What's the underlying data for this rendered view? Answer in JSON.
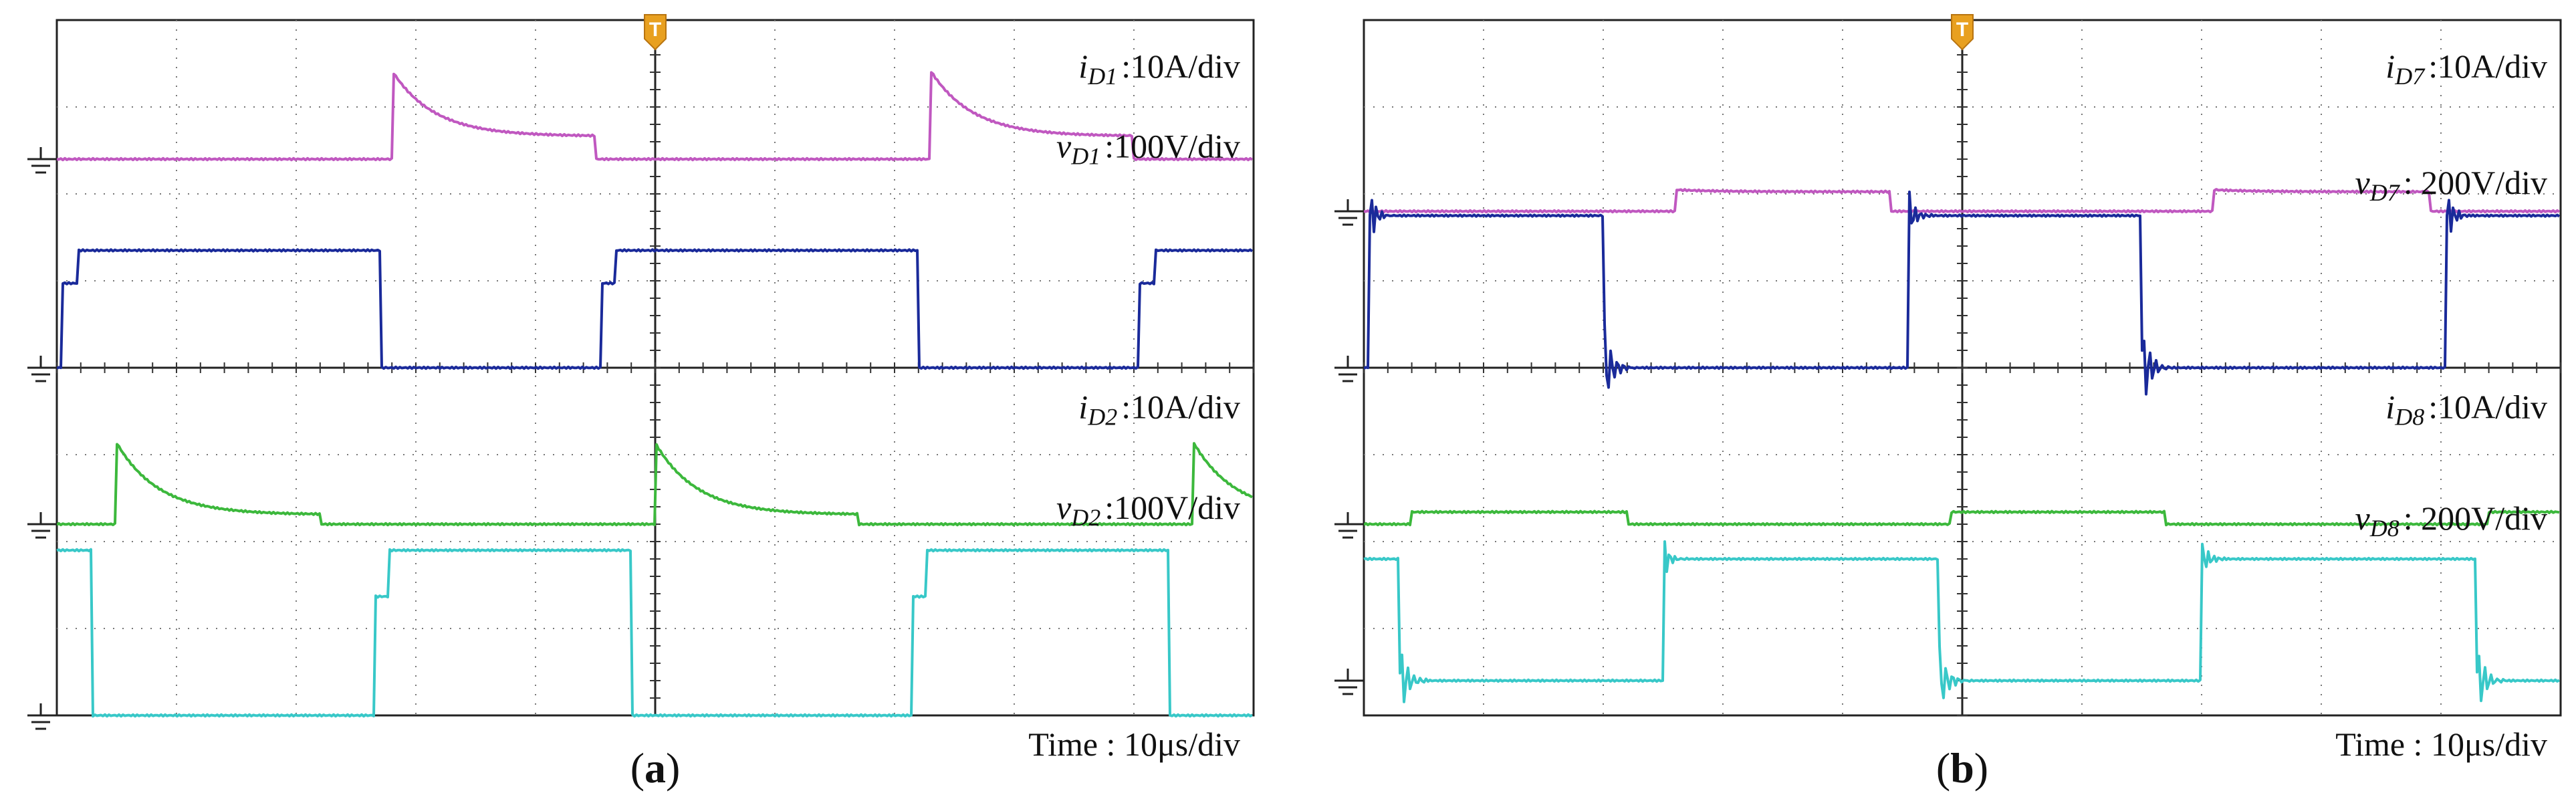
{
  "chart_data": [
    {
      "type": "line",
      "panel": "a",
      "caption": "(a)",
      "x_scale": "Time : 10μs/div",
      "grid": "10 x 8 divisions, dotted",
      "trigger_marker": "T",
      "traces": [
        {
          "name": "i_D1",
          "symbol": "i",
          "subscript": "D1",
          "scale": ":10A/div",
          "color": "#c058c0",
          "kind": "current",
          "period": 4.5,
          "rise": 2.8,
          "fall": 4.5,
          "peak": 0.85,
          "plateau": 0.22,
          "baseline_div": 1.6,
          "amp_div": 1.2,
          "label_row": 0.66
        },
        {
          "name": "v_D1",
          "symbol": "v",
          "subscript": "D1",
          "scale": ":100V/div",
          "color": "#1a2a9a",
          "kind": "voltage",
          "period": 4.5,
          "rise": 0.05,
          "fall": 2.7,
          "steps": true,
          "baseline_div": 4.0,
          "amp_div": 1.35,
          "label_row": 1.58
        },
        {
          "name": "i_D2",
          "symbol": "i",
          "subscript": "D2",
          "scale": ":10A/div",
          "color": "#3cb83c",
          "kind": "current",
          "period": 4.5,
          "rise": 0.5,
          "fall": 2.2,
          "peak": 0.85,
          "plateau": 0.1,
          "baseline_div": 5.8,
          "amp_div": 1.1,
          "label_row": 4.58
        },
        {
          "name": "v_D2",
          "symbol": "v",
          "subscript": "D2",
          "scale": ":100V/div",
          "color": "#38c8c8",
          "kind": "voltage",
          "period": 4.5,
          "rise": 2.65,
          "fall": 0.3,
          "steps": true,
          "baseline_div": 8.0,
          "amp_div": 1.9,
          "label_row": 5.74
        }
      ]
    },
    {
      "type": "line",
      "panel": "b",
      "caption": "(b)",
      "x_scale": "Time : 10μs/div",
      "grid": "10 x 8 divisions, dotted",
      "trigger_marker": "T",
      "traces": [
        {
          "name": "i_D7",
          "symbol": "i",
          "subscript": "D7",
          "scale": ":10A/div",
          "color": "#c058c0",
          "kind": "current",
          "period": 4.5,
          "rise": 2.6,
          "fall": 4.4,
          "peak": 0.55,
          "plateau": 0.5,
          "baseline_div": 2.2,
          "amp_div": 0.45,
          "label_row": 0.66
        },
        {
          "name": "v_D7",
          "symbol": "v",
          "subscript": "D7",
          "scale": ": 200V/div",
          "color": "#1a2a9a",
          "kind": "voltage",
          "period": 4.5,
          "rise": 0.05,
          "fall": 2.0,
          "ringing": true,
          "baseline_div": 4.0,
          "amp_div": 1.75,
          "label_row": 2.0
        },
        {
          "name": "i_D8",
          "symbol": "i",
          "subscript": "D8",
          "scale": ":10A/div",
          "color": "#3cb83c",
          "kind": "current",
          "period": 4.5,
          "rise": 0.4,
          "fall": 2.2,
          "peak": 0.4,
          "plateau": 0.4,
          "baseline_div": 5.8,
          "amp_div": 0.35,
          "label_row": 4.58
        },
        {
          "name": "v_D8",
          "symbol": "v",
          "subscript": "D8",
          "scale": ": 200V/div",
          "color": "#38c8c8",
          "kind": "voltage",
          "period": 4.5,
          "rise": 2.5,
          "fall": 0.3,
          "ringing": true,
          "baseline_div": 7.6,
          "amp_div": 1.4,
          "label_row": 5.86
        }
      ]
    }
  ]
}
